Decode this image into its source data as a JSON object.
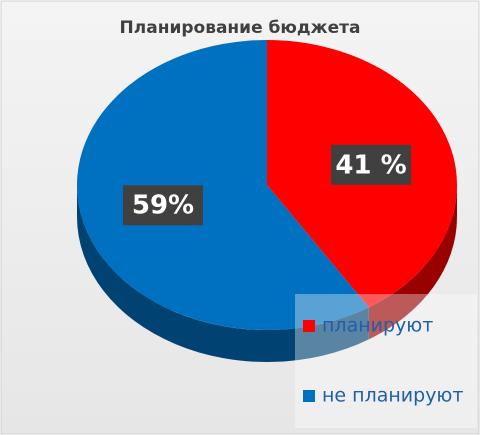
{
  "chart_data": {
    "type": "pie",
    "title": "Планирование бюджета",
    "categories": [
      "планируют",
      "не планируют"
    ],
    "values": [
      41,
      59
    ],
    "value_labels": [
      "41 %",
      "59%"
    ],
    "colors": [
      "#ff0000",
      "#0070c0"
    ],
    "legend": "bottom-right"
  }
}
